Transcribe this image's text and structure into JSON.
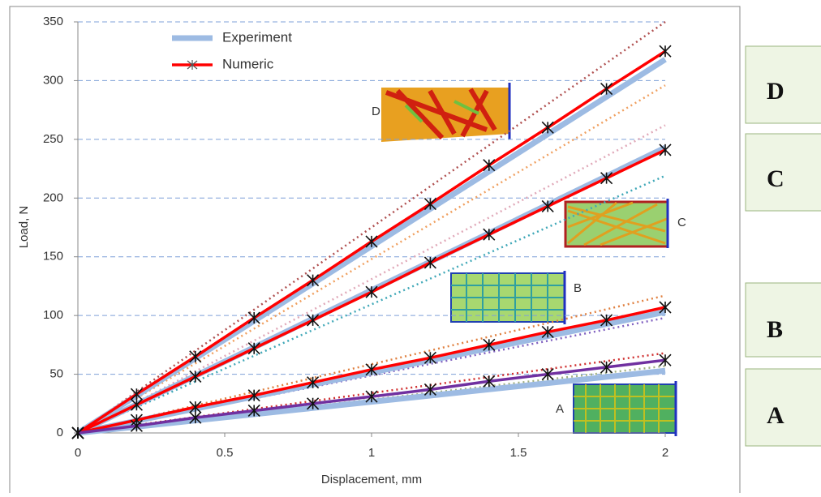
{
  "chart_data": {
    "type": "line",
    "x_label": "Displacement, mm",
    "y_label": "Load, N",
    "xlim": [
      0,
      2
    ],
    "ylim": [
      0,
      350
    ],
    "xticks": [
      0,
      0.5,
      1,
      1.5,
      2
    ],
    "yticks": [
      0,
      50,
      100,
      150,
      200,
      250,
      300,
      350
    ],
    "grid": true,
    "legend_position": "upper left",
    "legend": [
      {
        "name": "Experiment",
        "color": "#9dbbe3",
        "style": "experiment"
      },
      {
        "name": "Numeric",
        "color": "#ff0000",
        "style": "numeric"
      }
    ],
    "series": [
      {
        "style": "fit",
        "color": "#b05050",
        "x": [
          0,
          2
        ],
        "values": [
          0,
          350
        ]
      },
      {
        "style": "fit",
        "color": "#f0a060",
        "x": [
          0,
          2
        ],
        "values": [
          0,
          296
        ]
      },
      {
        "style": "fit",
        "color": "#e0a8b8",
        "x": [
          0,
          2
        ],
        "values": [
          0,
          262
        ]
      },
      {
        "style": "fit",
        "color": "#40a8b8",
        "x": [
          0,
          2
        ],
        "values": [
          0,
          219
        ]
      },
      {
        "style": "fit",
        "color": "#e08040",
        "x": [
          0,
          2
        ],
        "values": [
          0,
          117
        ]
      },
      {
        "style": "fit",
        "color": "#8060c0",
        "x": [
          0,
          2
        ],
        "values": [
          0,
          98
        ]
      },
      {
        "style": "fit",
        "color": "#d03030",
        "x": [
          0,
          2
        ],
        "values": [
          0,
          68
        ]
      },
      {
        "style": "fit",
        "color": "#a0b080",
        "x": [
          0,
          2
        ],
        "values": [
          0,
          57
        ]
      },
      {
        "style": "experiment",
        "color": "#9dbbe3",
        "x": [
          0,
          2
        ],
        "values": [
          0,
          318
        ]
      },
      {
        "style": "experiment",
        "color": "#9dbbe3",
        "x": [
          0,
          2
        ],
        "values": [
          0,
          243
        ]
      },
      {
        "style": "experiment",
        "color": "#9dbbe3",
        "x": [
          0,
          2
        ],
        "values": [
          0,
          103
        ]
      },
      {
        "style": "experiment",
        "color": "#9dbbe3",
        "x": [
          0,
          2
        ],
        "values": [
          0,
          53
        ]
      },
      {
        "style": "numeric",
        "color": "#ff0000",
        "x": [
          0,
          0.2,
          0.4,
          0.6,
          0.8,
          1,
          1.2,
          1.4,
          1.6,
          1.8,
          2
        ],
        "values": [
          0,
          33,
          65,
          98,
          130,
          163,
          195,
          228,
          260,
          293,
          325
        ]
      },
      {
        "style": "numeric",
        "color": "#ff0000",
        "x": [
          0,
          0.2,
          0.4,
          0.6,
          0.8,
          1,
          1.2,
          1.4,
          1.6,
          1.8,
          2
        ],
        "values": [
          0,
          24,
          48,
          72,
          96,
          120,
          145,
          169,
          193,
          217,
          241
        ]
      },
      {
        "style": "numeric",
        "color": "#ff0000",
        "x": [
          0,
          0.2,
          0.4,
          0.6,
          0.8,
          1,
          1.2,
          1.4,
          1.6,
          1.8,
          2
        ],
        "values": [
          0,
          11,
          22,
          32,
          43,
          54,
          64,
          75,
          86,
          96,
          107
        ]
      },
      {
        "style": "numeric",
        "color": "#7030a0",
        "x": [
          0,
          0.2,
          0.4,
          0.6,
          0.8,
          1,
          1.2,
          1.4,
          1.6,
          1.8,
          2
        ],
        "values": [
          0,
          6,
          13,
          19,
          25,
          31,
          37,
          44,
          50,
          56,
          62
        ]
      }
    ],
    "annotations": [
      "D",
      "C",
      "B",
      "A"
    ],
    "side_labels": [
      "D",
      "C",
      "B",
      "A"
    ]
  }
}
